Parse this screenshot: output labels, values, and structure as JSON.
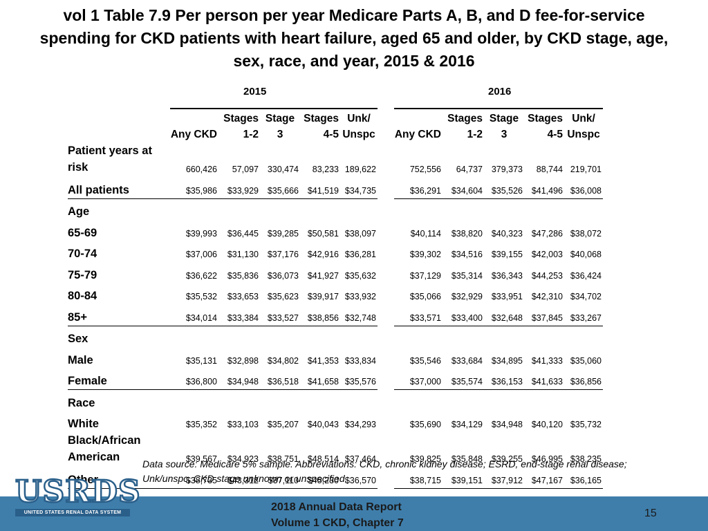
{
  "slide": {
    "title_lines": [
      "vol 1 Table 7.9 Per person per year Medicare Parts A, B, and D fee-for-service",
      "spending for CKD patients with heart failure, aged 65 and older, by CKD stage, age,",
      "sex, race, and year, 2015 & 2016"
    ],
    "year_labels": [
      "2015",
      "2016"
    ],
    "columns": [
      [
        "Any CKD",
        ""
      ],
      [
        "Stages",
        "1-2"
      ],
      [
        "Stage",
        "3"
      ],
      [
        "Stages",
        "4-5"
      ],
      [
        "Unk/",
        "Unspc"
      ]
    ],
    "rows": [
      {
        "label": [
          "Patient years at",
          "risk"
        ],
        "values": [
          "660,426",
          "57,097",
          "330,474",
          "83,233",
          "189,622",
          "752,556",
          "64,737",
          "379,373",
          "88,744",
          "219,701"
        ]
      },
      {
        "label": [
          "All patients"
        ],
        "values": [
          "$35,986",
          "$33,929",
          "$35,666",
          "$41,519",
          "$34,735",
          "$36,291",
          "$34,604",
          "$35,526",
          "$41,496",
          "$36,008"
        ]
      },
      {
        "label": [
          "Age"
        ],
        "values": []
      },
      {
        "label": [
          "65-69"
        ],
        "values": [
          "$39,993",
          "$36,445",
          "$39,285",
          "$50,581",
          "$38,097",
          "$40,114",
          "$38,820",
          "$40,323",
          "$47,286",
          "$38,072"
        ]
      },
      {
        "label": [
          "70-74"
        ],
        "values": [
          "$37,006",
          "$31,130",
          "$37,176",
          "$42,916",
          "$36,281",
          "$39,302",
          "$34,516",
          "$39,155",
          "$42,003",
          "$40,068"
        ]
      },
      {
        "label": [
          "75-79"
        ],
        "values": [
          "$36,622",
          "$35,836",
          "$36,073",
          "$41,927",
          "$35,632",
          "$37,129",
          "$35,314",
          "$36,343",
          "$44,253",
          "$36,424"
        ]
      },
      {
        "label": [
          "80-84"
        ],
        "values": [
          "$35,532",
          "$33,653",
          "$35,623",
          "$39,917",
          "$33,932",
          "$35,066",
          "$32,929",
          "$33,951",
          "$42,310",
          "$34,702"
        ]
      },
      {
        "label": [
          "85+"
        ],
        "values": [
          "$34,014",
          "$33,384",
          "$33,527",
          "$38,856",
          "$32,748",
          "$33,571",
          "$33,400",
          "$32,648",
          "$37,845",
          "$33,267"
        ]
      },
      {
        "label": [
          "Sex"
        ],
        "values": []
      },
      {
        "label": [
          "Male"
        ],
        "values": [
          "$35,131",
          "$32,898",
          "$34,802",
          "$41,353",
          "$33,834",
          "$35,546",
          "$33,684",
          "$34,895",
          "$41,333",
          "$35,060"
        ]
      },
      {
        "label": [
          "Female"
        ],
        "values": [
          "$36,800",
          "$34,948",
          "$36,518",
          "$41,658",
          "$35,576",
          "$37,000",
          "$35,574",
          "$36,153",
          "$41,633",
          "$36,856"
        ]
      },
      {
        "label": [
          "Race"
        ],
        "values": []
      },
      {
        "label": [
          "White"
        ],
        "values": [
          "$35,352",
          "$33,103",
          "$35,207",
          "$40,043",
          "$34,293",
          "$35,690",
          "$34,129",
          "$34,948",
          "$40,120",
          "$35,732"
        ]
      },
      {
        "label": [
          "Black/African",
          "American"
        ],
        "values": [
          "$39,567",
          "$34,923",
          "$38,751",
          "$48,514",
          "$37,464",
          "$39,825",
          "$35,848",
          "$39,255",
          "$46,995",
          "$38,235"
        ]
      },
      {
        "label": [
          "Other"
        ],
        "values": [
          "$38,735",
          "$43,312",
          "$37,110",
          "$45,230",
          "$36,570",
          "$38,715",
          "$39,151",
          "$37,912",
          "$47,167",
          "$36,165"
        ]
      }
    ],
    "note": "Data source: Medicare 5% sample. Abbreviations: CKD, chronic kidney disease; ESRD, end-stage renal disease; Unk/unspc, CKD stage unknown or unspecified."
  },
  "footer": {
    "logo_text": "USRDS",
    "logo_subtitle": "UNITED STATES RENAL DATA SYSTEM",
    "line1": "2018 Annual Data Report",
    "line2": "Volume 1 CKD, Chapter 7",
    "page_number": "15",
    "bar_color": "#3f7eab",
    "logo_color": "#2a5f8a"
  }
}
